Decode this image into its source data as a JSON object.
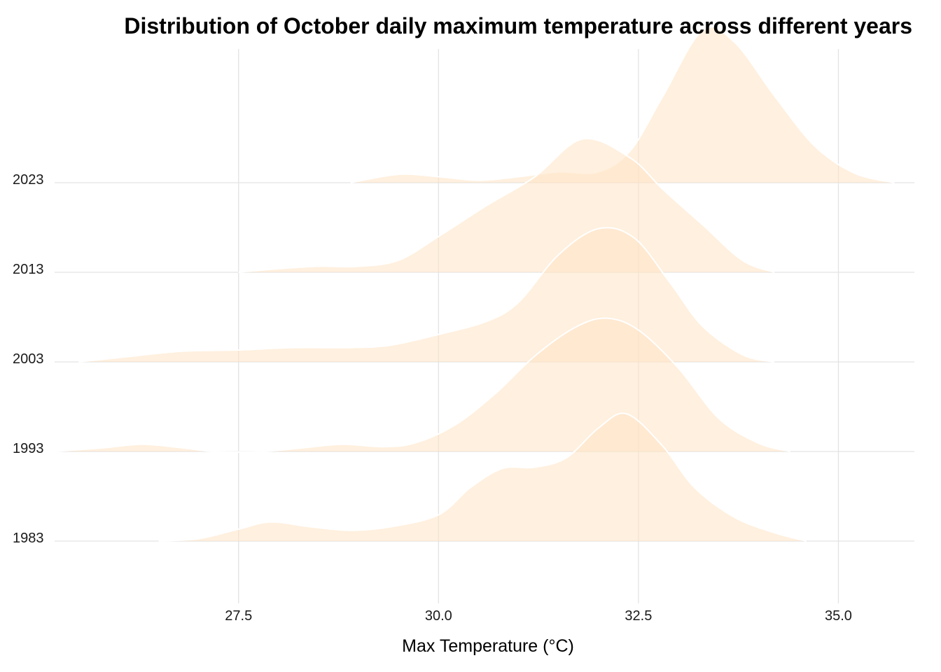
{
  "chart_data": {
    "type": "ridgeline",
    "title": "Distribution of October daily maximum temperature across different years",
    "xlabel": "Max Temperature (°C)",
    "ylabel": "",
    "xlim": [
      25.2,
      35.95
    ],
    "x_ticks": [
      27.5,
      30.0,
      32.5,
      35.0
    ],
    "x_tick_labels": [
      "27.5",
      "30.0",
      "32.5",
      "35.0"
    ],
    "grid": true,
    "legend": "none",
    "fill_color": "#ffe4c4",
    "fill_opacity": 0.55,
    "outline_color": "#ffffff",
    "series": [
      {
        "year": "1983",
        "points": [
          [
            26.5,
            0.0
          ],
          [
            27.0,
            0.02
          ],
          [
            27.5,
            0.1
          ],
          [
            27.9,
            0.16
          ],
          [
            28.4,
            0.12
          ],
          [
            28.9,
            0.09
          ],
          [
            29.4,
            0.12
          ],
          [
            30.0,
            0.22
          ],
          [
            30.4,
            0.45
          ],
          [
            30.8,
            0.61
          ],
          [
            31.2,
            0.62
          ],
          [
            31.6,
            0.7
          ],
          [
            32.0,
            0.95
          ],
          [
            32.35,
            1.07
          ],
          [
            32.8,
            0.8
          ],
          [
            33.2,
            0.45
          ],
          [
            33.7,
            0.2
          ],
          [
            34.2,
            0.07
          ],
          [
            34.6,
            0.0
          ]
        ]
      },
      {
        "year": "1993",
        "points": [
          [
            25.2,
            0.0
          ],
          [
            25.8,
            0.03
          ],
          [
            26.3,
            0.06
          ],
          [
            26.8,
            0.03
          ],
          [
            27.2,
            0.0
          ],
          [
            27.8,
            0.0
          ],
          [
            28.3,
            0.03
          ],
          [
            28.8,
            0.06
          ],
          [
            29.3,
            0.04
          ],
          [
            29.7,
            0.07
          ],
          [
            30.2,
            0.22
          ],
          [
            30.7,
            0.48
          ],
          [
            31.2,
            0.8
          ],
          [
            31.7,
            1.04
          ],
          [
            32.1,
            1.12
          ],
          [
            32.5,
            1.02
          ],
          [
            33.0,
            0.7
          ],
          [
            33.5,
            0.28
          ],
          [
            34.0,
            0.07
          ],
          [
            34.4,
            0.0
          ]
        ]
      },
      {
        "year": "2003",
        "points": [
          [
            25.5,
            0.0
          ],
          [
            26.2,
            0.05
          ],
          [
            26.8,
            0.09
          ],
          [
            27.5,
            0.1
          ],
          [
            28.2,
            0.12
          ],
          [
            28.9,
            0.12
          ],
          [
            29.4,
            0.14
          ],
          [
            30.0,
            0.23
          ],
          [
            30.6,
            0.34
          ],
          [
            31.0,
            0.5
          ],
          [
            31.5,
            0.9
          ],
          [
            32.0,
            1.12
          ],
          [
            32.45,
            1.04
          ],
          [
            32.9,
            0.66
          ],
          [
            33.3,
            0.3
          ],
          [
            33.8,
            0.06
          ],
          [
            34.2,
            0.0
          ]
        ]
      },
      {
        "year": "2013",
        "points": [
          [
            27.5,
            0.0
          ],
          [
            28.0,
            0.03
          ],
          [
            28.5,
            0.05
          ],
          [
            29.0,
            0.05
          ],
          [
            29.5,
            0.1
          ],
          [
            30.0,
            0.3
          ],
          [
            30.6,
            0.56
          ],
          [
            31.2,
            0.8
          ],
          [
            31.8,
            1.12
          ],
          [
            32.4,
            0.96
          ],
          [
            32.8,
            0.7
          ],
          [
            33.3,
            0.4
          ],
          [
            33.8,
            0.1
          ],
          [
            34.2,
            0.0
          ]
        ]
      },
      {
        "year": "2023",
        "points": [
          [
            28.9,
            0.0
          ],
          [
            29.5,
            0.07
          ],
          [
            30.0,
            0.05
          ],
          [
            30.5,
            0.02
          ],
          [
            31.0,
            0.05
          ],
          [
            31.5,
            0.09
          ],
          [
            32.0,
            0.09
          ],
          [
            32.4,
            0.27
          ],
          [
            32.8,
            0.72
          ],
          [
            33.3,
            1.28
          ],
          [
            33.7,
            1.18
          ],
          [
            34.2,
            0.73
          ],
          [
            34.7,
            0.31
          ],
          [
            35.2,
            0.08
          ],
          [
            35.7,
            0.0
          ]
        ]
      }
    ]
  }
}
